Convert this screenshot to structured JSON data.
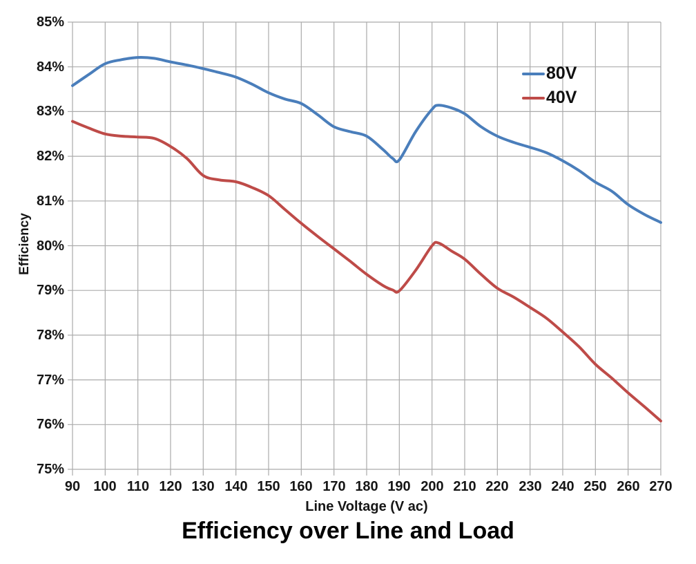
{
  "title": "Efficiency over Line and Load",
  "legend": {
    "items": [
      {
        "label": "80V",
        "color": "#4A7EBB"
      },
      {
        "label": "40V",
        "color": "#BE4B48"
      }
    ]
  },
  "chart_data": {
    "type": "line",
    "title": "Efficiency over Line and Load",
    "xlabel": "Line Voltage (V ac)",
    "ylabel": "Efficiency",
    "xlim": [
      90,
      270
    ],
    "ylim": [
      75,
      85
    ],
    "grid": true,
    "legend_position": "inside-top-right",
    "x_ticks": [
      90,
      100,
      110,
      120,
      130,
      140,
      150,
      160,
      170,
      180,
      190,
      200,
      210,
      220,
      230,
      240,
      250,
      260,
      270
    ],
    "x_tick_labels": [
      "90",
      "100",
      "110",
      "120",
      "130",
      "140",
      "150",
      "160",
      "170",
      "180",
      "190",
      "200",
      "210",
      "220",
      "230",
      "240",
      "250",
      "260",
      "270"
    ],
    "y_ticks": [
      75,
      76,
      77,
      78,
      79,
      80,
      81,
      82,
      83,
      84,
      85
    ],
    "y_tick_labels": [
      "75%",
      "76%",
      "77%",
      "78%",
      "79%",
      "80%",
      "81%",
      "82%",
      "83%",
      "84%",
      "85%"
    ],
    "colors": {
      "gridline": "#ABABAB",
      "tick_text": "#161616",
      "series_80V": "#4A7EBB",
      "series_40V": "#BE4B48"
    },
    "x": [
      90,
      95,
      100,
      105,
      110,
      115,
      120,
      125,
      130,
      135,
      140,
      145,
      150,
      155,
      160,
      165,
      170,
      175,
      180,
      185,
      188,
      190,
      195,
      200,
      202,
      206,
      210,
      215,
      220,
      225,
      230,
      235,
      240,
      245,
      250,
      255,
      260,
      265,
      270
    ],
    "series": [
      {
        "name": "80V",
        "color": "#4A7EBB",
        "values": [
          83.58,
          83.83,
          84.07,
          84.16,
          84.21,
          84.19,
          84.11,
          84.04,
          83.96,
          83.87,
          83.77,
          83.61,
          83.42,
          83.28,
          83.18,
          82.93,
          82.66,
          82.55,
          82.45,
          82.15,
          81.95,
          81.92,
          82.55,
          83.05,
          83.14,
          83.08,
          82.95,
          82.66,
          82.45,
          82.31,
          82.2,
          82.08,
          81.9,
          81.68,
          81.42,
          81.22,
          80.92,
          80.7,
          80.52
        ]
      },
      {
        "name": "40V",
        "color": "#BE4B48",
        "values": [
          82.78,
          82.63,
          82.5,
          82.45,
          82.43,
          82.4,
          82.22,
          81.95,
          81.57,
          81.47,
          81.43,
          81.3,
          81.12,
          80.81,
          80.5,
          80.21,
          79.93,
          79.65,
          79.36,
          79.11,
          79.01,
          78.99,
          79.45,
          80.0,
          80.06,
          79.88,
          79.7,
          79.36,
          79.05,
          78.85,
          78.62,
          78.38,
          78.07,
          77.74,
          77.35,
          77.04,
          76.71,
          76.4,
          76.08
        ]
      }
    ]
  }
}
